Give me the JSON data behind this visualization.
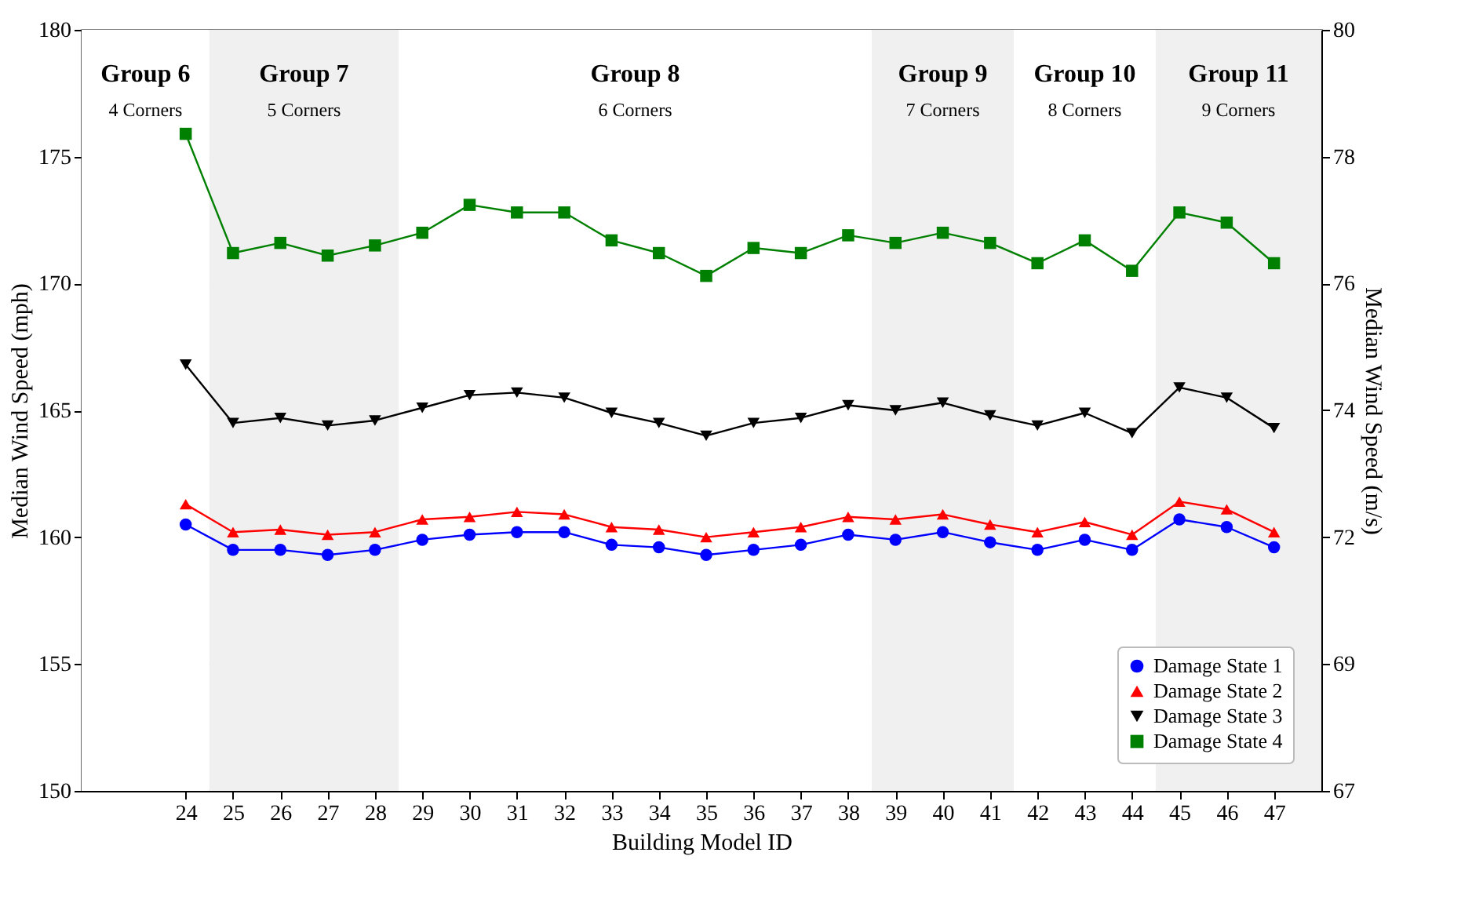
{
  "chart_data": {
    "type": "line",
    "xlabel": "Building Model ID",
    "ylabel": "Median Wind Speed (mph)",
    "y2label": "Median Wind Speed (m/s)",
    "x": [
      24,
      25,
      26,
      27,
      28,
      29,
      30,
      31,
      32,
      33,
      34,
      35,
      36,
      37,
      38,
      39,
      40,
      41,
      42,
      43,
      44,
      45,
      46,
      47
    ],
    "xlim": [
      21.8,
      48
    ],
    "xticks": [
      24,
      25,
      26,
      27,
      28,
      29,
      30,
      31,
      32,
      33,
      34,
      35,
      36,
      37,
      38,
      39,
      40,
      41,
      42,
      43,
      44,
      45,
      46,
      47
    ],
    "ylim": [
      150,
      180
    ],
    "yticks": [
      150,
      155,
      160,
      165,
      170,
      175,
      180
    ],
    "y2lim": [
      67.056,
      80.467
    ],
    "y2ticks": [
      {
        "value": 67.056,
        "label": "67"
      },
      {
        "value": 69.291,
        "label": "69"
      },
      {
        "value": 71.526,
        "label": "72"
      },
      {
        "value": 73.762,
        "label": "74"
      },
      {
        "value": 75.997,
        "label": "76"
      },
      {
        "value": 78.232,
        "label": "78"
      },
      {
        "value": 80.467,
        "label": "80"
      }
    ],
    "grid": true,
    "legend": "bottom right",
    "series": [
      {
        "name": "Damage State 1",
        "color": "#0000ff",
        "marker": "circle",
        "values": [
          160.5,
          159.5,
          159.5,
          159.3,
          159.5,
          159.9,
          160.1,
          160.2,
          160.2,
          159.7,
          159.6,
          159.3,
          159.5,
          159.7,
          160.1,
          159.9,
          160.2,
          159.8,
          159.5,
          159.9,
          159.5,
          160.7,
          160.4,
          159.6
        ]
      },
      {
        "name": "Damage State 2",
        "color": "#ff0000",
        "marker": "triangle",
        "values": [
          161.3,
          160.2,
          160.3,
          160.1,
          160.2,
          160.7,
          160.8,
          161.0,
          160.9,
          160.4,
          160.3,
          160.0,
          160.2,
          160.4,
          160.8,
          160.7,
          160.9,
          160.5,
          160.2,
          160.6,
          160.1,
          161.4,
          161.1,
          160.2
        ]
      },
      {
        "name": "Damage State 3",
        "color": "#000000",
        "marker": "triangle-down",
        "values": [
          166.8,
          164.5,
          164.7,
          164.4,
          164.6,
          165.1,
          165.6,
          165.7,
          165.5,
          164.9,
          164.5,
          164.0,
          164.5,
          164.7,
          165.2,
          165.0,
          165.3,
          164.8,
          164.4,
          164.9,
          164.1,
          165.9,
          165.5,
          164.3
        ]
      },
      {
        "name": "Damage State 4",
        "color": "#008000",
        "marker": "square",
        "values": [
          175.9,
          171.2,
          171.6,
          171.1,
          171.5,
          172.0,
          173.1,
          172.8,
          172.8,
          171.7,
          171.2,
          170.3,
          171.4,
          171.2,
          171.9,
          171.6,
          172.0,
          171.6,
          170.8,
          171.7,
          170.5,
          172.8,
          172.4,
          170.8
        ]
      }
    ],
    "bands": [
      {
        "axis": "x",
        "from": 21.8,
        "to": 24.5,
        "label": "Group 6\n4 Corners",
        "color": "#ffffff"
      },
      {
        "axis": "x",
        "from": 24.5,
        "to": 28.5,
        "label": "Group 7\n5 Corners",
        "color": "#f0f0f0"
      },
      {
        "axis": "x",
        "from": 28.5,
        "to": 38.5,
        "label": "Group 8\n6 Corners",
        "color": "#ffffff"
      },
      {
        "axis": "x",
        "from": 38.5,
        "to": 41.5,
        "label": "Group 9\n7 Corners",
        "color": "#f0f0f0"
      },
      {
        "axis": "x",
        "from": 41.5,
        "to": 44.5,
        "label": "Group 10\n8 Corners",
        "color": "#ffffff"
      },
      {
        "axis": "x",
        "from": 44.5,
        "to": 48,
        "label": "Group 11\n9 Corners",
        "color": "#f0f0f0"
      }
    ]
  }
}
